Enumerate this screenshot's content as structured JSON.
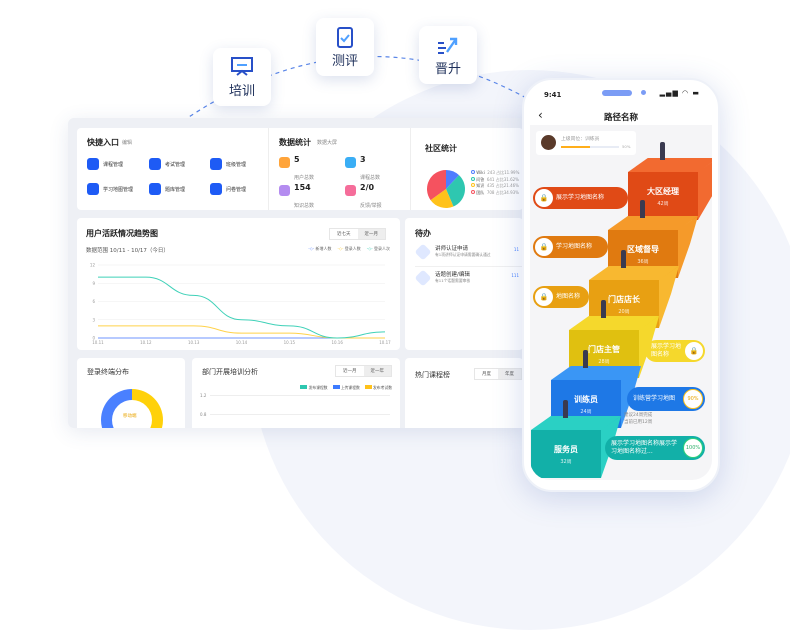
{
  "floating": [
    {
      "label": "培训",
      "icon": "presentation-board-icon"
    },
    {
      "label": "测评",
      "icon": "clipboard-check-icon"
    },
    {
      "label": "晋升",
      "icon": "arrow-up-growth-icon"
    }
  ],
  "quick": {
    "title": "快捷入口",
    "edit": "编辑",
    "items": [
      "课程管理",
      "考试管理",
      "班级管理",
      "学习地图管理",
      "题库管理",
      "问卷管理"
    ]
  },
  "stats": {
    "title": "数据统计",
    "screen": "数据大屏",
    "items": [
      {
        "value": "5",
        "label": "用户总数",
        "color": "#ffa43a"
      },
      {
        "value": "3",
        "label": "课程总数",
        "color": "#3aaef5"
      },
      {
        "value": "154",
        "label": "知识总数",
        "color": "#b48cf0"
      },
      {
        "value": "2/0",
        "label": "反馈/举报",
        "color": "#f56d9a"
      }
    ]
  },
  "community": {
    "title": "社区统计",
    "items": [
      {
        "name": "Wiki",
        "value": "243 占比11.99%",
        "pct": 11.99,
        "color": "#4e7cff"
      },
      {
        "name": "问答",
        "value": "641 占比31.62%",
        "pct": 31.62,
        "color": "#2ec7b0"
      },
      {
        "name": "知识",
        "value": "435 占比21.46%",
        "pct": 21.46,
        "color": "#ffc21a"
      },
      {
        "name": "团队",
        "value": "708 占比34.93%",
        "pct": 34.93,
        "color": "#f5525f"
      }
    ]
  },
  "activity": {
    "title": "用户活跃情况趋势图",
    "range": "数据范围 10/11 - 10/17（今日）",
    "tabs": [
      "近七天",
      "近一月"
    ]
  },
  "chart_data": {
    "type": "line",
    "categories": [
      "10.11",
      "10.12",
      "10.13",
      "10.14",
      "10.15",
      "10.16",
      "10.17"
    ],
    "yticks": [
      "0",
      "3",
      "6",
      "9",
      "12"
    ],
    "ylim": [
      0,
      12
    ],
    "grid": true,
    "legend": "top-right",
    "series": [
      {
        "name": "新增人数",
        "color": "#6f95ff",
        "values": [
          0,
          0,
          0,
          0,
          0,
          0,
          0
        ]
      },
      {
        "name": "登录人数",
        "color": "#ffd24a",
        "values": [
          2,
          2,
          2,
          0.8,
          0.8,
          0,
          0
        ]
      },
      {
        "name": "登录人次",
        "color": "#3fd1b8",
        "values": [
          10,
          10,
          7,
          3,
          2,
          0,
          1
        ]
      }
    ]
  },
  "todo": {
    "title": "待办",
    "items": [
      {
        "title": "讲师认证申请",
        "desc": "有1项讲师认证申请需要确认通过",
        "badge": "11"
      },
      {
        "title": "话题创建/编辑",
        "desc": "有11个话题需要审核",
        "badge": "111"
      }
    ]
  },
  "login": {
    "title": "登录终端分布",
    "center": "移动端"
  },
  "dept": {
    "title": "部门开展培训分析",
    "tabs": [
      "近一月",
      "近一年"
    ],
    "legend": [
      {
        "name": "发布课程数",
        "color": "#2ec7b0"
      },
      {
        "name": "上传课程数",
        "color": "#3d7bff"
      },
      {
        "name": "发布考试数",
        "color": "#ffc21a"
      }
    ],
    "yticks": [
      "1.2",
      "0.8"
    ]
  },
  "hot": {
    "title": "热门课程榜",
    "tabs": [
      "月度",
      "年度"
    ]
  },
  "phone": {
    "time": "9:41",
    "title": "路径名称",
    "position": "上级岗位：训练员",
    "progress": "50%",
    "progress_value": 50,
    "steps": [
      {
        "name": "大区经理",
        "weeks": "42周",
        "color": "#e04a16",
        "side": "#f26a30"
      },
      {
        "name": "区域督导",
        "weeks": "36周",
        "color": "#e07a10",
        "side": "#f59a2a"
      },
      {
        "name": "门店店长",
        "weeks": "20周",
        "color": "#e8a012",
        "side": "#f8b830"
      },
      {
        "name": "门店主管",
        "weeks": "28周",
        "color": "#e0c010",
        "side": "#f5d82c"
      },
      {
        "name": "训练员",
        "weeks": "24周",
        "color": "#1e78e6",
        "side": "#3a96f5"
      },
      {
        "name": "服务员",
        "weeks": "32周",
        "color": "#12b0a8",
        "side": "#2ad0c4"
      }
    ],
    "maps": [
      {
        "label": "展示学习地图名称"
      },
      {
        "label": "学习地图名称"
      },
      {
        "label": "地图名称"
      },
      {
        "label": "展示学习地图名称"
      },
      {
        "label": "训练营学习地图",
        "pct": "90%"
      },
      {
        "label": "展示学习地图名称展示学习地图名称过...",
        "pct": "100%"
      }
    ],
    "advice": "建议24周完成",
    "advice2": "当前已用12周"
  }
}
